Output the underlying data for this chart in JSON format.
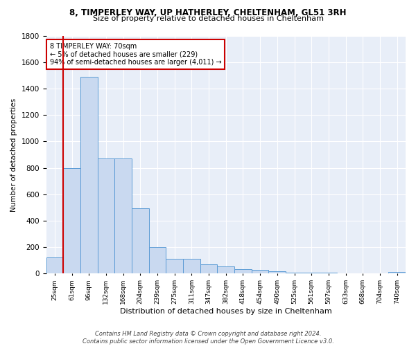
{
  "title1": "8, TIMPERLEY WAY, UP HATHERLEY, CHELTENHAM, GL51 3RH",
  "title2": "Size of property relative to detached houses in Cheltenham",
  "xlabel": "Distribution of detached houses by size in Cheltenham",
  "ylabel": "Number of detached properties",
  "bar_labels": [
    "25sqm",
    "61sqm",
    "96sqm",
    "132sqm",
    "168sqm",
    "204sqm",
    "239sqm",
    "275sqm",
    "311sqm",
    "347sqm",
    "382sqm",
    "418sqm",
    "454sqm",
    "490sqm",
    "525sqm",
    "561sqm",
    "597sqm",
    "633sqm",
    "668sqm",
    "704sqm",
    "740sqm"
  ],
  "bar_values": [
    125,
    800,
    1490,
    870,
    870,
    495,
    200,
    110,
    110,
    70,
    55,
    35,
    30,
    20,
    10,
    8,
    5,
    3,
    2,
    2,
    15
  ],
  "bar_color": "#c9d9f0",
  "bar_edge_color": "#5b9bd5",
  "vline_x": 0.5,
  "vline_color": "#cc0000",
  "annotation_text": "8 TIMPERLEY WAY: 70sqm\n← 5% of detached houses are smaller (229)\n94% of semi-detached houses are larger (4,011) →",
  "annotation_box_color": "#ffffff",
  "annotation_box_edge": "#cc0000",
  "footer": "Contains HM Land Registry data © Crown copyright and database right 2024.\nContains public sector information licensed under the Open Government Licence v3.0.",
  "bg_color": "#e8eef8",
  "ylim": [
    0,
    1800
  ],
  "yticks": [
    0,
    200,
    400,
    600,
    800,
    1000,
    1200,
    1400,
    1600,
    1800
  ]
}
